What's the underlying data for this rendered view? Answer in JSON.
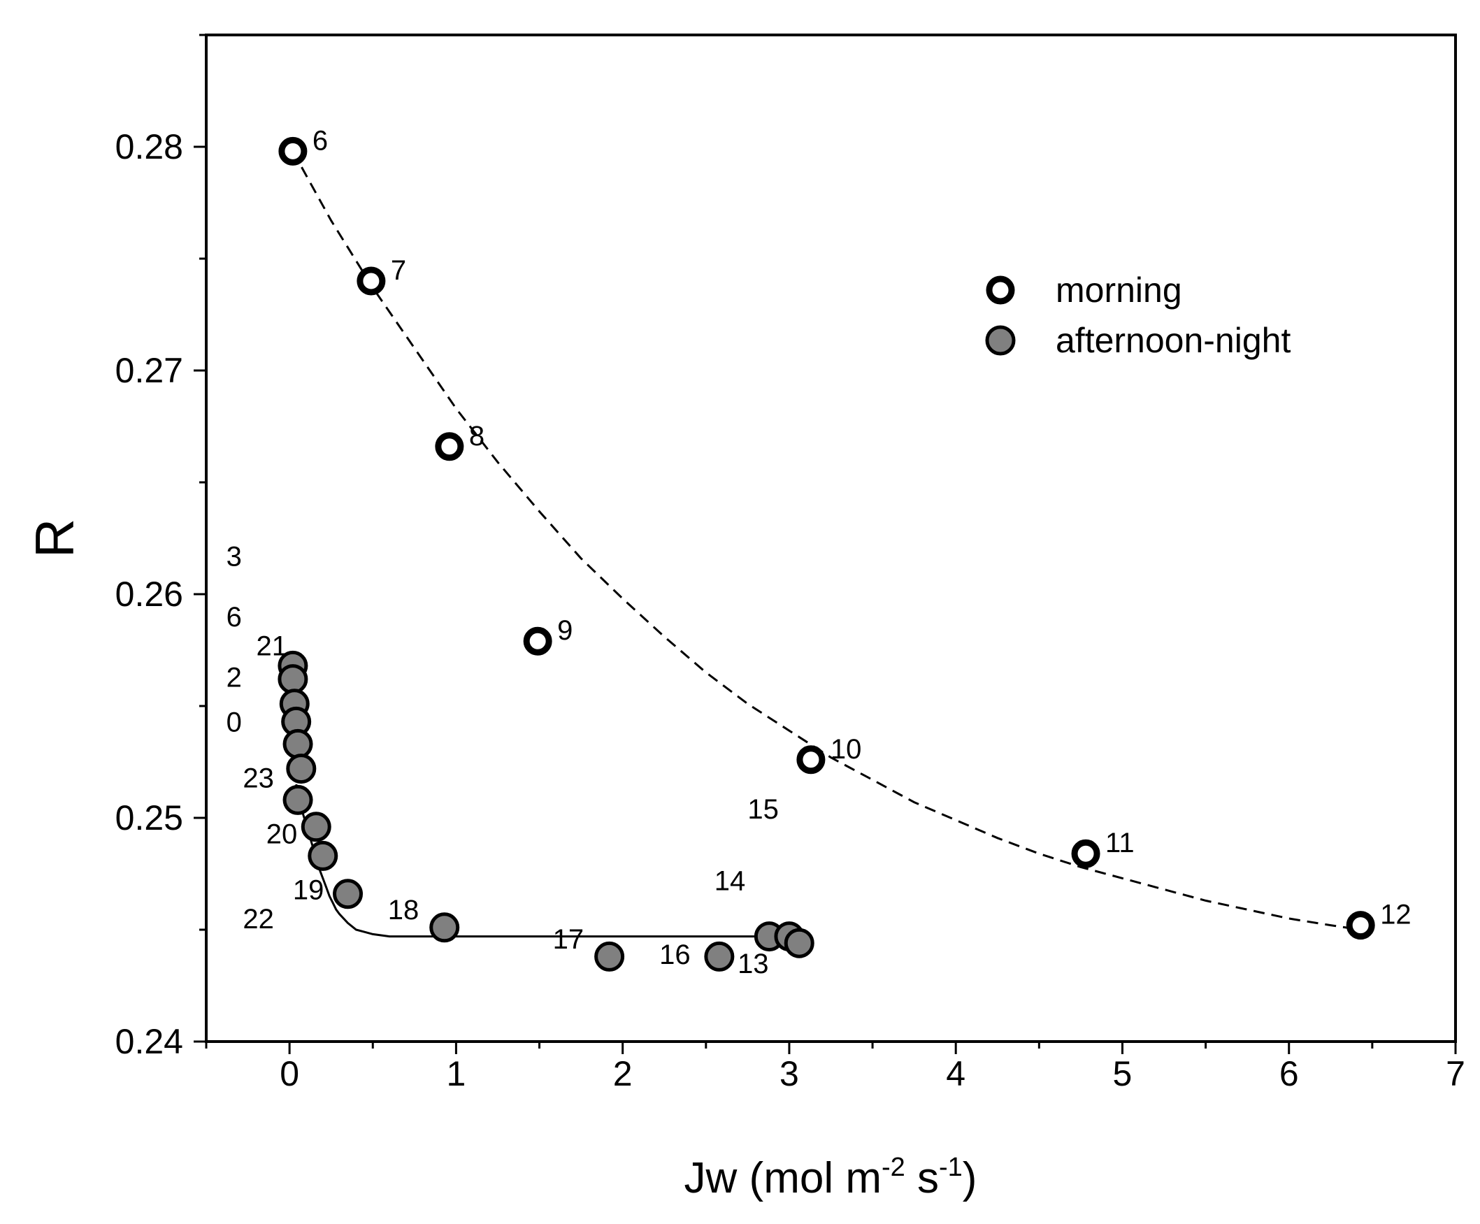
{
  "chart_data": {
    "type": "scatter",
    "title": "",
    "xlabel": "Jw (mol m",
    "xlabel_sup1": "-2",
    "xlabel_mid": " s",
    "xlabel_sup2": "-1",
    "xlabel_end": ")",
    "ylabel": "R",
    "xlim": [
      -0.5,
      7
    ],
    "ylim": [
      0.24,
      0.285
    ],
    "grid": false,
    "legend_position": "top-right",
    "x_ticks": [
      0,
      1,
      2,
      3,
      4,
      5,
      6,
      7
    ],
    "x_tick_labels": [
      "0",
      "1",
      "2",
      "3",
      "4",
      "5",
      "6",
      "7"
    ],
    "y_ticks": [
      0.24,
      0.25,
      0.26,
      0.27,
      0.28
    ],
    "y_tick_labels": [
      "0.24",
      "0.25",
      "0.26",
      "0.27",
      "0.28"
    ],
    "series": [
      {
        "name": "morning",
        "marker": "open-circle",
        "color": "#ffffff",
        "edge_color": "#000000",
        "points": [
          {
            "x": 0.02,
            "y": 0.2798,
            "label": "6"
          },
          {
            "x": 0.49,
            "y": 0.274,
            "label": "7"
          },
          {
            "x": 0.96,
            "y": 0.2666,
            "label": "8"
          },
          {
            "x": 1.49,
            "y": 0.2579,
            "label": "9"
          },
          {
            "x": 3.13,
            "y": 0.2526,
            "label": "10"
          },
          {
            "x": 4.78,
            "y": 0.2484,
            "label": "11"
          },
          {
            "x": 6.43,
            "y": 0.2452,
            "label": "12"
          }
        ]
      },
      {
        "name": "afternoon-night",
        "marker": "filled-circle",
        "color": "#808080",
        "edge_color": "#000000",
        "points": [
          {
            "x": 0.02,
            "y": 0.2568
          },
          {
            "x": 0.02,
            "y": 0.2562
          },
          {
            "x": 0.03,
            "y": 0.2551
          },
          {
            "x": 0.04,
            "y": 0.2543
          },
          {
            "x": 0.05,
            "y": 0.2533
          },
          {
            "x": 0.07,
            "y": 0.2522
          },
          {
            "x": 0.05,
            "y": 0.2508
          },
          {
            "x": 0.16,
            "y": 0.2496
          },
          {
            "x": 0.2,
            "y": 0.2483
          },
          {
            "x": 0.35,
            "y": 0.2466
          },
          {
            "x": 0.93,
            "y": 0.2451
          },
          {
            "x": 1.92,
            "y": 0.2438
          },
          {
            "x": 2.58,
            "y": 0.2438
          },
          {
            "x": 2.88,
            "y": 0.2447
          },
          {
            "x": 3.0,
            "y": 0.2447
          },
          {
            "x": 3.06,
            "y": 0.2444
          }
        ]
      }
    ],
    "fit_curves": [
      {
        "name": "morning-fit",
        "style": "dashed",
        "x": [
          0.02,
          0.25,
          0.5,
          0.75,
          1.0,
          1.25,
          1.5,
          1.75,
          2.0,
          2.25,
          2.5,
          2.75,
          3.0,
          3.25,
          3.5,
          3.75,
          4.0,
          4.25,
          4.5,
          4.75,
          5.0,
          5.25,
          5.5,
          5.75,
          6.0,
          6.25,
          6.43
        ],
        "y": [
          0.2798,
          0.2767,
          0.2737,
          0.271,
          0.2683,
          0.2659,
          0.2637,
          0.2616,
          0.2598,
          0.2581,
          0.2565,
          0.2551,
          0.2539,
          0.2527,
          0.2517,
          0.2507,
          0.2499,
          0.2491,
          0.2484,
          0.2478,
          0.2473,
          0.2468,
          0.2463,
          0.2459,
          0.2455,
          0.2452,
          0.245
        ]
      },
      {
        "name": "afternoon-night-fit",
        "style": "solid",
        "x": [
          0.04,
          0.06,
          0.08,
          0.1,
          0.12,
          0.14,
          0.16,
          0.18,
          0.2,
          0.22,
          0.24,
          0.26,
          0.28,
          0.3,
          0.35,
          0.4,
          0.45,
          0.5,
          0.6,
          0.7,
          0.8,
          1.0,
          1.5,
          2.0,
          2.5,
          3.0,
          3.06
        ],
        "y": [
          0.2515,
          0.2508,
          0.2502,
          0.2497,
          0.2492,
          0.2487,
          0.2482,
          0.2477,
          0.2473,
          0.2469,
          0.2465,
          0.2462,
          0.2459,
          0.2457,
          0.2453,
          0.245,
          0.2449,
          0.2448,
          0.2447,
          0.2447,
          0.2447,
          0.2447,
          0.2447,
          0.2447,
          0.2447,
          0.2447,
          0.2447
        ]
      }
    ],
    "afternoon_hour_labels": [
      {
        "text": "3",
        "x": -0.38,
        "y": 0.2617
      },
      {
        "text": "6",
        "x": -0.38,
        "y": 0.259
      },
      {
        "text": "21",
        "x": -0.2,
        "y": 0.2577
      },
      {
        "text": "2",
        "x": -0.38,
        "y": 0.2563
      },
      {
        "text": "0",
        "x": -0.38,
        "y": 0.2543
      },
      {
        "text": "23",
        "x": -0.28,
        "y": 0.2518
      },
      {
        "text": "20",
        "x": -0.14,
        "y": 0.2493
      },
      {
        "text": "19",
        "x": 0.02,
        "y": 0.2468
      },
      {
        "text": "22",
        "x": -0.28,
        "y": 0.2455
      },
      {
        "text": "18",
        "x": 0.59,
        "y": 0.2459
      },
      {
        "text": "17",
        "x": 1.58,
        "y": 0.2446
      },
      {
        "text": "16",
        "x": 2.22,
        "y": 0.2439
      },
      {
        "text": "13",
        "x": 2.69,
        "y": 0.2435
      },
      {
        "text": "14",
        "x": 2.55,
        "y": 0.2472
      },
      {
        "text": "15",
        "x": 2.75,
        "y": 0.2504
      }
    ]
  }
}
